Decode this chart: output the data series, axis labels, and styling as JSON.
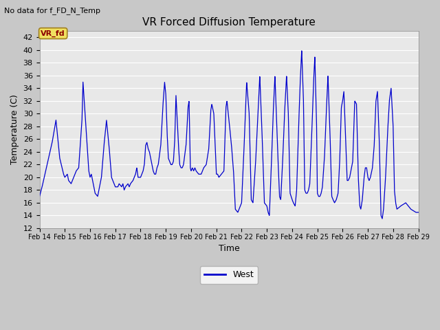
{
  "title": "VR Forced Diffusion Temperature",
  "top_left_text": "No data for f_FD_N_Temp",
  "ylabel": "Temperature (C)",
  "xlabel": "Time",
  "legend_label": "West",
  "tag_label": "VR_fd",
  "ylim": [
    12,
    43
  ],
  "yticks": [
    12,
    14,
    16,
    18,
    20,
    22,
    24,
    26,
    28,
    30,
    32,
    34,
    36,
    38,
    40,
    42
  ],
  "line_color": "#0000cc",
  "fig_facecolor": "#c8c8c8",
  "ax_facecolor": "#e8e8e8",
  "x_labels": [
    "Feb 14",
    "Feb 15",
    "Feb 16",
    "Feb 17",
    "Feb 18",
    "Feb 19",
    "Feb 20",
    "Feb 21",
    "Feb 22",
    "Feb 23",
    "Feb 24",
    "Feb 25",
    "Feb 26",
    "Feb 27",
    "Feb 28",
    "Feb 29"
  ],
  "figsize": [
    6.4,
    4.8
  ],
  "dpi": 100
}
